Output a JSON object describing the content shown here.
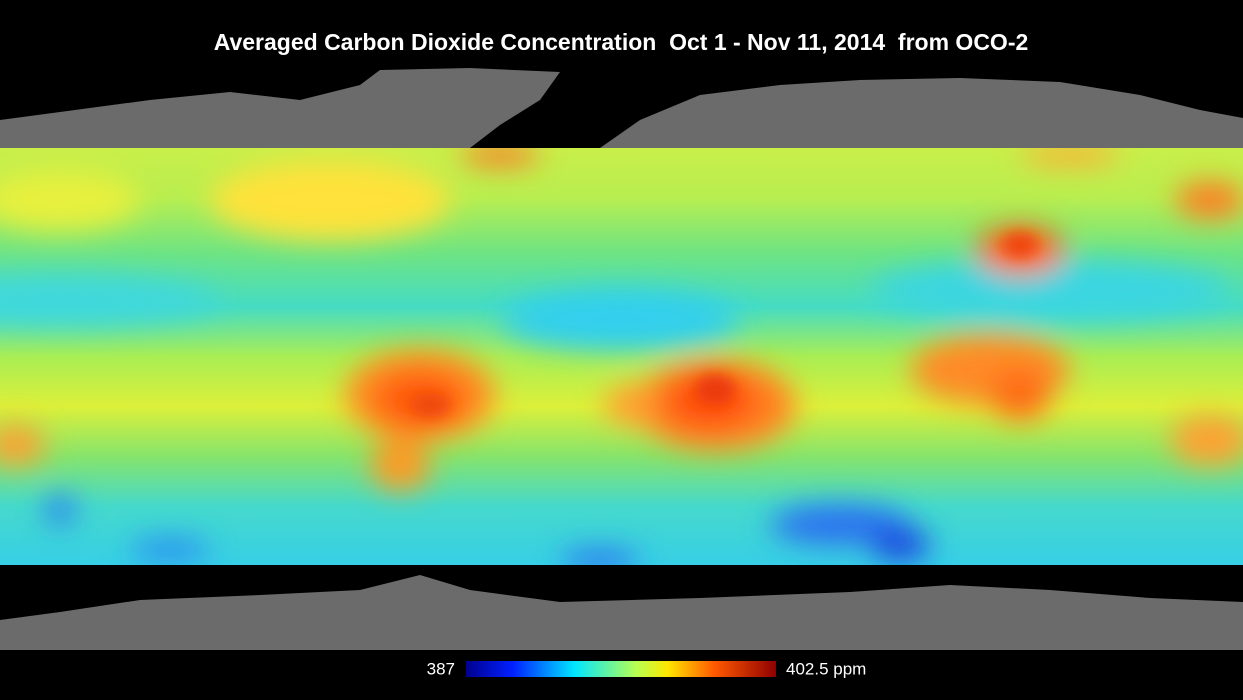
{
  "title": "Averaged Carbon Dioxide Concentration  Oct 1 - Nov 11, 2014  from OCO-2",
  "colorbar": {
    "min_label": "387",
    "max_label": "402.5 ppm"
  }
}
